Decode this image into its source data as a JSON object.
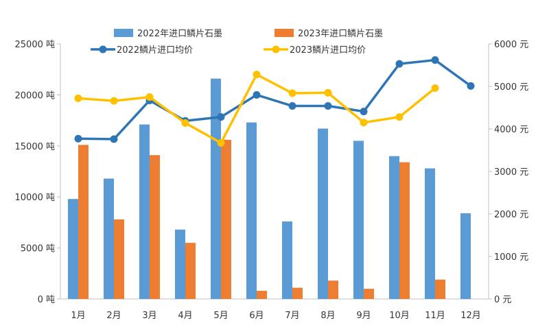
{
  "chart_data": {
    "type": "bar+line",
    "categories": [
      "1月",
      "2月",
      "3月",
      "4月",
      "5月",
      "6月",
      "7月",
      "8月",
      "9月",
      "10月",
      "11月",
      "12月"
    ],
    "bar_series": [
      {
        "name": "2022年进口鳞片石墨",
        "color": "#5b9bd5",
        "values": [
          9800,
          11800,
          17100,
          6800,
          21600,
          17300,
          7600,
          16700,
          15500,
          14000,
          12800,
          8400
        ]
      },
      {
        "name": "2023年进口鳞片石墨",
        "color": "#ed7d31",
        "values": [
          15100,
          7800,
          14100,
          5500,
          15600,
          800,
          1100,
          1800,
          1000,
          13400,
          1900,
          null
        ]
      }
    ],
    "line_series": [
      {
        "name": "2022鳞片进口均价",
        "color": "#2e75b6",
        "values": [
          3770,
          3760,
          4670,
          4190,
          4280,
          4800,
          4540,
          4540,
          4410,
          5530,
          5620,
          5010
        ]
      },
      {
        "name": "2023鳞片进口均价",
        "color": "#ffc000",
        "values": [
          4720,
          4660,
          4750,
          4140,
          3670,
          5280,
          4840,
          4850,
          4150,
          4280,
          4960,
          null
        ]
      }
    ],
    "y_left": {
      "min": 0,
      "max": 25000,
      "step": 5000,
      "unit": "吨",
      "ticks": [
        "0 吨",
        "5000 吨",
        "10000 吨",
        "15000 吨",
        "20000 吨",
        "25000 吨"
      ]
    },
    "y_right": {
      "min": 0,
      "max": 6000,
      "step": 1000,
      "unit": "元",
      "ticks": [
        "0 元",
        "1000 元",
        "2000 元",
        "3000 元",
        "4000 元",
        "5000 元",
        "6000 元"
      ]
    },
    "legend_position": "top",
    "grid": false
  }
}
